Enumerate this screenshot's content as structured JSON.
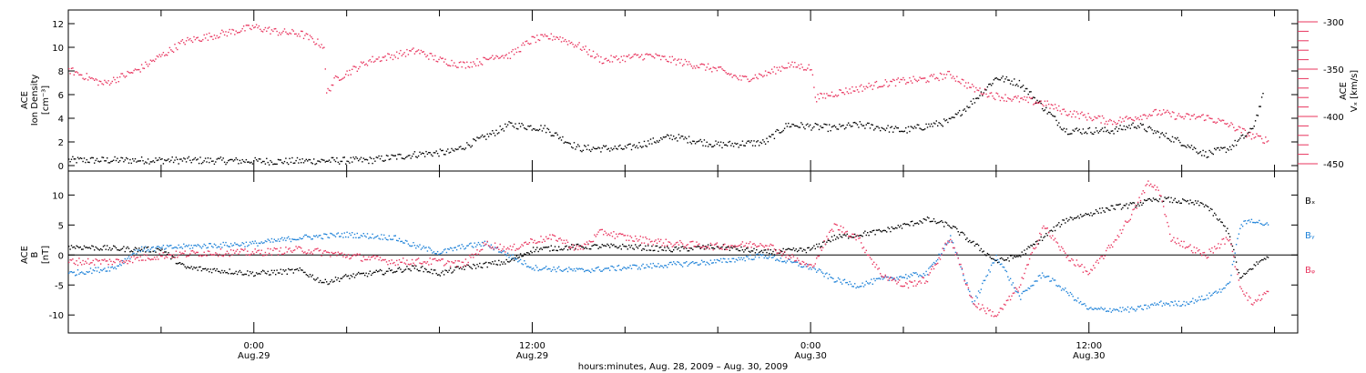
{
  "chart_data": [
    {
      "type": "scatter",
      "panel": "top",
      "ylabel_lines": [
        "ACE",
        "Ion Density",
        "[cm⁻³]"
      ],
      "ylabel_right_lines": [
        "ACE",
        "Vₓ [km/s]"
      ],
      "ylim": [
        0,
        13
      ],
      "yticks": [
        0,
        2,
        4,
        6,
        8,
        10,
        12
      ],
      "ylim_right": [
        -300,
        -450
      ],
      "yticks_right": [
        -300,
        -350,
        -400,
        -450
      ],
      "xlim_hours": [
        -8,
        45
      ],
      "series": [
        {
          "color": "#000000",
          "axis": "left",
          "knots": [
            [
              -8,
              0.5
            ],
            [
              -3,
              0.5
            ],
            [
              1,
              0.4
            ],
            [
              5,
              0.5
            ],
            [
              7,
              1.0
            ],
            [
              8.5,
              1.2
            ],
            [
              10,
              2.5
            ],
            [
              11,
              3.5
            ],
            [
              12.5,
              3.2
            ],
            [
              14,
              1.5
            ],
            [
              16,
              1.5
            ],
            [
              18,
              2.5
            ],
            [
              20,
              1.8
            ],
            [
              22,
              2.0
            ],
            [
              23,
              3.5
            ],
            [
              25,
              3.2
            ],
            [
              26,
              3.5
            ],
            [
              28,
              3.0
            ],
            [
              30,
              3.8
            ],
            [
              31,
              5.5
            ],
            [
              32,
              7.5
            ],
            [
              33,
              7.0
            ],
            [
              34,
              5.0
            ],
            [
              35,
              3.0
            ],
            [
              37,
              3.0
            ],
            [
              38,
              3.5
            ],
            [
              40,
              2.0
            ],
            [
              41,
              1.0
            ],
            [
              42,
              1.5
            ],
            [
              43,
              3.0
            ],
            [
              43.5,
              6.0
            ]
          ],
          "noise": 0.3
        },
        {
          "color": "#e8345e",
          "axis": "right",
          "knots": [
            [
              -8,
              -350
            ],
            [
              -6.5,
              -365
            ],
            [
              -5,
              -350
            ],
            [
              -3,
              -320
            ],
            [
              0,
              -305
            ],
            [
              1,
              -310
            ],
            [
              2,
              -312
            ],
            [
              3,
              -325
            ],
            [
              3.1,
              -375
            ],
            [
              3.5,
              -360
            ],
            [
              5,
              -340
            ],
            [
              7,
              -330
            ],
            [
              8,
              -340
            ],
            [
              9,
              -345
            ],
            [
              10,
              -340
            ],
            [
              10.3,
              -335
            ],
            [
              11,
              -335
            ],
            [
              12,
              -318
            ],
            [
              13,
              -315
            ],
            [
              14,
              -325
            ],
            [
              15,
              -340
            ],
            [
              17,
              -335
            ],
            [
              18,
              -340
            ],
            [
              19,
              -345
            ],
            [
              20,
              -350
            ],
            [
              21,
              -360
            ],
            [
              22,
              -355
            ],
            [
              23,
              -345
            ],
            [
              24,
              -348
            ],
            [
              24.2,
              -380
            ],
            [
              25,
              -375
            ],
            [
              26,
              -370
            ],
            [
              27,
              -365
            ],
            [
              28,
              -362
            ],
            [
              29,
              -360
            ],
            [
              30,
              -355
            ],
            [
              31,
              -370
            ],
            [
              32,
              -378
            ],
            [
              34,
              -385
            ],
            [
              35,
              -395
            ],
            [
              36,
              -400
            ],
            [
              37,
              -405
            ],
            [
              38,
              -400
            ],
            [
              39,
              -395
            ],
            [
              40,
              -400
            ],
            [
              41,
              -400
            ],
            [
              42,
              -408
            ],
            [
              43,
              -420
            ],
            [
              43.7,
              -425
            ]
          ],
          "noise": 4
        }
      ]
    },
    {
      "type": "scatter",
      "panel": "bottom",
      "ylabel_lines": [
        "ACE",
        "B",
        "[nT]"
      ],
      "ylim": [
        -13,
        14
      ],
      "yticks": [
        -10,
        -5,
        0,
        5,
        10
      ],
      "zero_line": true,
      "xlim_hours": [
        -8,
        45
      ],
      "x_tick_labels": [
        {
          "hour": 0,
          "time": "0:00",
          "date": "Aug.29"
        },
        {
          "hour": 12,
          "time": "12:00",
          "date": "Aug.29"
        },
        {
          "hour": 24,
          "time": "0:00",
          "date": "Aug.30"
        },
        {
          "hour": 36,
          "time": "12:00",
          "date": "Aug.30"
        }
      ],
      "xlabel": "hours:minutes, Aug. 28, 2009 – Aug. 30, 2009",
      "legend": [
        {
          "label": "Bₓ",
          "color": "#000000"
        },
        {
          "label": "Bᵧ",
          "color": "#1e82d8"
        },
        {
          "label": "Bᵩ",
          "color": "#e8345e"
        }
      ],
      "series": [
        {
          "name": "Bₓ",
          "color": "#000000",
          "knots": [
            [
              -8,
              1.5
            ],
            [
              -5,
              1.0
            ],
            [
              -4,
              1.0
            ],
            [
              -3,
              -2.0
            ],
            [
              0,
              -3.0
            ],
            [
              2,
              -2.5
            ],
            [
              3,
              -4.5
            ],
            [
              4,
              -3.5
            ],
            [
              5,
              -3.0
            ],
            [
              6,
              -2.5
            ],
            [
              7,
              -2.0
            ],
            [
              8,
              -3.0
            ],
            [
              9,
              -2.0
            ],
            [
              10,
              -1.5
            ],
            [
              11,
              -1.0
            ],
            [
              12,
              1.0
            ],
            [
              14,
              1.5
            ],
            [
              16,
              1.5
            ],
            [
              18,
              1.0
            ],
            [
              20,
              1.5
            ],
            [
              21,
              1.0
            ],
            [
              22,
              0.5
            ],
            [
              24,
              1.0
            ],
            [
              25,
              3.0
            ],
            [
              26,
              3.5
            ],
            [
              27,
              4.0
            ],
            [
              28,
              5.0
            ],
            [
              29,
              6.0
            ],
            [
              30,
              5.0
            ],
            [
              31,
              2.0
            ],
            [
              32,
              -1.0
            ],
            [
              33,
              0.0
            ],
            [
              34,
              3.0
            ],
            [
              35,
              6.0
            ],
            [
              36,
              7.0
            ],
            [
              37,
              8.0
            ],
            [
              38,
              8.5
            ],
            [
              39,
              9.5
            ],
            [
              40,
              9.0
            ],
            [
              41,
              8.5
            ],
            [
              42,
              4.0
            ],
            [
              42.5,
              -4.0
            ],
            [
              43,
              -2.0
            ],
            [
              43.7,
              0.0
            ]
          ],
          "noise": 0.45
        },
        {
          "name": "Bᵧ",
          "color": "#1e82d8",
          "knots": [
            [
              -8,
              -3.0
            ],
            [
              -6,
              -2.0
            ],
            [
              -5,
              1.0
            ],
            [
              -3,
              1.5
            ],
            [
              0,
              2.0
            ],
            [
              2,
              3.0
            ],
            [
              4,
              3.5
            ],
            [
              6,
              3.0
            ],
            [
              7,
              1.5
            ],
            [
              8,
              0.5
            ],
            [
              9,
              1.5
            ],
            [
              10,
              2.0
            ],
            [
              11,
              0.0
            ],
            [
              12,
              -2.0
            ],
            [
              14,
              -2.5
            ],
            [
              16,
              -2.0
            ],
            [
              18,
              -1.5
            ],
            [
              20,
              -1.0
            ],
            [
              22,
              0.0
            ],
            [
              24,
              -2.0
            ],
            [
              25,
              -4.0
            ],
            [
              26,
              -5.0
            ],
            [
              27,
              -4.0
            ],
            [
              28,
              -3.5
            ],
            [
              29,
              -3.0
            ],
            [
              30,
              3.0
            ],
            [
              31,
              -8.0
            ],
            [
              32,
              0.0
            ],
            [
              33,
              -7.0
            ],
            [
              34,
              -3.0
            ],
            [
              35,
              -6.0
            ],
            [
              36,
              -9.0
            ],
            [
              38,
              -9.0
            ],
            [
              39,
              -8.0
            ],
            [
              40,
              -8.0
            ],
            [
              41,
              -7.0
            ],
            [
              42,
              -5.0
            ],
            [
              42.5,
              5.0
            ],
            [
              43,
              6.0
            ],
            [
              43.7,
              5.0
            ]
          ],
          "noise": 0.45
        },
        {
          "name": "Bᵩ",
          "color": "#e8345e",
          "knots": [
            [
              -8,
              -1.0
            ],
            [
              -6,
              -1.0
            ],
            [
              -4,
              0.0
            ],
            [
              -2,
              0.5
            ],
            [
              0,
              0.5
            ],
            [
              2,
              1.0
            ],
            [
              4,
              0.0
            ],
            [
              6,
              -1.0
            ],
            [
              8,
              -1.0
            ],
            [
              9,
              -1.5
            ],
            [
              10,
              2.0
            ],
            [
              11,
              1.0
            ],
            [
              12,
              2.5
            ],
            [
              13,
              3.0
            ],
            [
              14,
              1.0
            ],
            [
              15,
              4.0
            ],
            [
              16,
              3.0
            ],
            [
              18,
              2.0
            ],
            [
              20,
              1.5
            ],
            [
              22,
              2.0
            ],
            [
              24,
              -2.0
            ],
            [
              25,
              5.0
            ],
            [
              26,
              3.0
            ],
            [
              27,
              -3.0
            ],
            [
              28,
              -5.0
            ],
            [
              29,
              -4.0
            ],
            [
              30,
              3.0
            ],
            [
              31,
              -8.0
            ],
            [
              32,
              -10.0
            ],
            [
              33,
              -5.0
            ],
            [
              34,
              5.0
            ],
            [
              35,
              0.0
            ],
            [
              36,
              -3.0
            ],
            [
              37,
              2.0
            ],
            [
              38,
              8.0
            ],
            [
              38.5,
              12.0
            ],
            [
              39,
              11.0
            ],
            [
              39.5,
              3.0
            ],
            [
              40,
              2.0
            ],
            [
              41,
              0.0
            ],
            [
              42,
              3.0
            ],
            [
              42.5,
              -5.0
            ],
            [
              43,
              -8.0
            ],
            [
              43.7,
              -6.0
            ]
          ],
          "noise": 0.6
        }
      ]
    }
  ]
}
